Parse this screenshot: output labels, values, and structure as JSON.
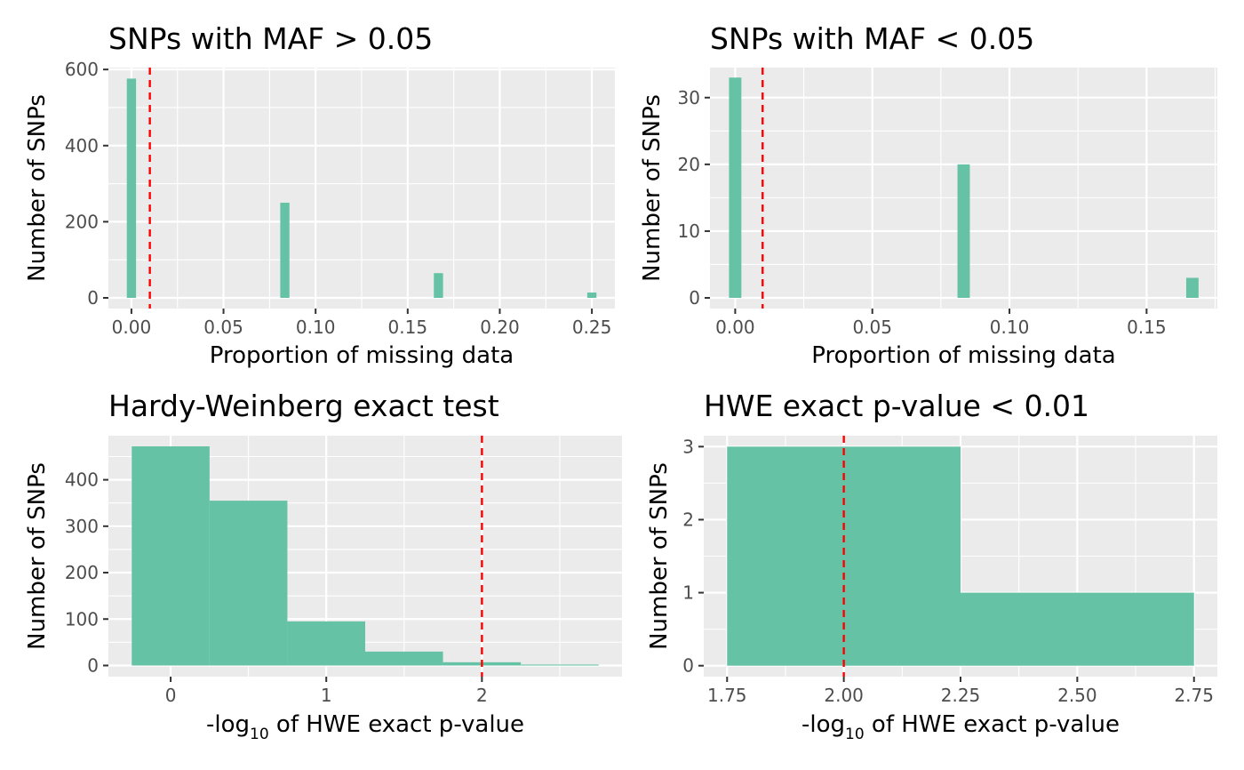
{
  "chart_data": [
    {
      "type": "bar",
      "title": "SNPs with MAF > 0.05",
      "xlabel": "Proportion of missing data",
      "ylabel": "Number of SNPs",
      "xlim": [
        -0.0125,
        0.2625
      ],
      "ylim": [
        -28,
        605
      ],
      "x_ticks": [
        0.0,
        0.05,
        0.1,
        0.15,
        0.2,
        0.25
      ],
      "x_tick_labels": [
        "0.00",
        "0.05",
        "0.10",
        "0.15",
        "0.20",
        "0.25"
      ],
      "y_ticks": [
        0,
        200,
        400,
        600
      ],
      "y_tick_labels": [
        "0",
        "200",
        "400",
        "600"
      ],
      "bin_width": 0.005,
      "bins": [
        {
          "x": 0.0,
          "count": 576
        },
        {
          "x": 0.0833,
          "count": 250
        },
        {
          "x": 0.1667,
          "count": 65
        },
        {
          "x": 0.25,
          "count": 14
        }
      ],
      "threshold": 0.01,
      "bar_color": "#66c2a5",
      "threshold_color": "#ff0000"
    },
    {
      "type": "bar",
      "title": "SNPs with MAF < 0.05",
      "xlabel": "Proportion of missing data",
      "ylabel": "Number of SNPs",
      "xlim": [
        -0.0092,
        0.1758
      ],
      "ylim": [
        -1.6,
        34.5
      ],
      "x_ticks": [
        0.0,
        0.05,
        0.1,
        0.15
      ],
      "x_tick_labels": [
        "0.00",
        "0.05",
        "0.10",
        "0.15"
      ],
      "y_ticks": [
        0,
        10,
        20,
        30
      ],
      "y_tick_labels": [
        "0",
        "10",
        "20",
        "30"
      ],
      "bin_width": 0.0045,
      "bins": [
        {
          "x": 0.0,
          "count": 33
        },
        {
          "x": 0.0833,
          "count": 20
        },
        {
          "x": 0.1667,
          "count": 3
        }
      ],
      "threshold": 0.01,
      "bar_color": "#66c2a5",
      "threshold_color": "#ff0000"
    },
    {
      "type": "bar",
      "title": "Hardy-Weinberg exact test",
      "xlabel_parts": [
        "-log",
        "10",
        " of HWE exact p-value"
      ],
      "ylabel": "Number of SNPs",
      "xlim": [
        -0.4,
        2.9
      ],
      "ylim": [
        -24,
        495
      ],
      "x_ticks": [
        0,
        1,
        2
      ],
      "x_tick_labels": [
        "0",
        "1",
        "2"
      ],
      "y_ticks": [
        0,
        100,
        200,
        300,
        400
      ],
      "y_tick_labels": [
        "0",
        "100",
        "200",
        "300",
        "400"
      ],
      "bin_width": 0.5,
      "bins": [
        {
          "x": 0.0,
          "count": 472
        },
        {
          "x": 0.5,
          "count": 355
        },
        {
          "x": 1.0,
          "count": 95
        },
        {
          "x": 1.5,
          "count": 30
        },
        {
          "x": 2.0,
          "count": 7
        },
        {
          "x": 2.5,
          "count": 2
        }
      ],
      "threshold": 2,
      "bar_color": "#66c2a5",
      "threshold_color": "#ff0000"
    },
    {
      "type": "bar",
      "title": "HWE exact p-value < 0.01",
      "xlabel_parts": [
        "-log",
        "10",
        " of HWE exact p-value"
      ],
      "ylabel": "Number of SNPs",
      "xlim": [
        1.7,
        2.8
      ],
      "ylim": [
        -0.15,
        3.15
      ],
      "x_ticks": [
        1.75,
        2.0,
        2.25,
        2.5,
        2.75
      ],
      "x_tick_labels": [
        "1.75",
        "2.00",
        "2.25",
        "2.50",
        "2.75"
      ],
      "y_ticks": [
        0,
        1,
        2,
        3
      ],
      "y_tick_labels": [
        "0",
        "1",
        "2",
        "3"
      ],
      "bin_width": 0.5,
      "bins": [
        {
          "x": 2.0,
          "count": 3
        },
        {
          "x": 2.5,
          "count": 1
        }
      ],
      "threshold": 2,
      "bar_color": "#66c2a5",
      "threshold_color": "#ff0000"
    }
  ]
}
